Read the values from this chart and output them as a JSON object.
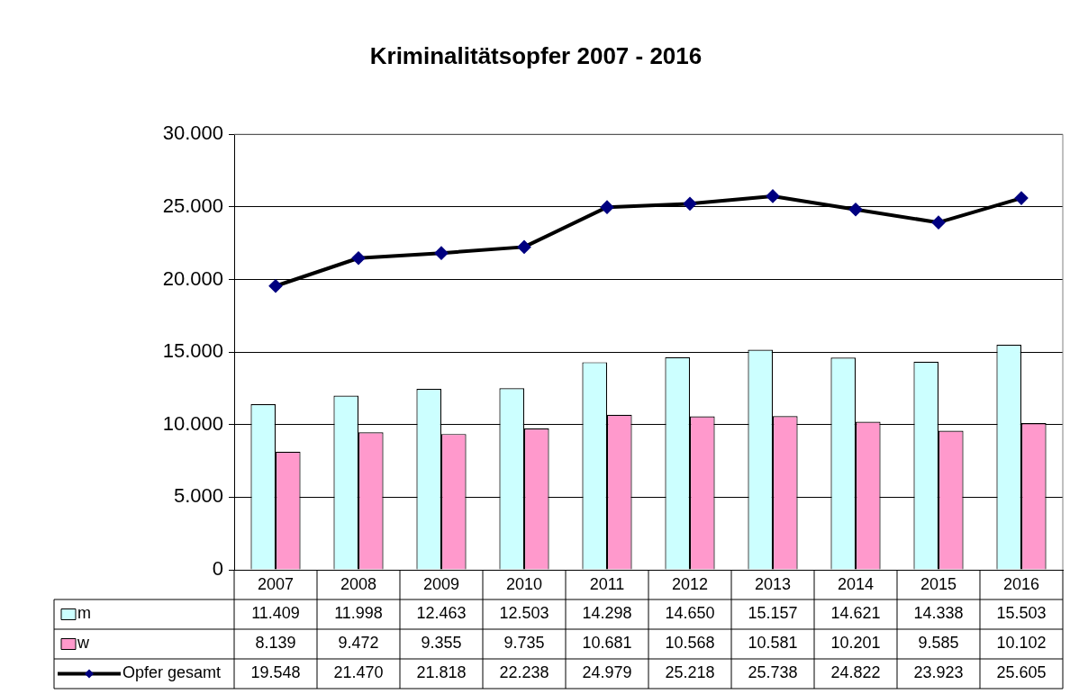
{
  "chart_data": {
    "type": "bar",
    "title": "Kriminalitätsopfer 2007 - 2016",
    "categories": [
      "2007",
      "2008",
      "2009",
      "2010",
      "2011",
      "2012",
      "2013",
      "2014",
      "2015",
      "2016"
    ],
    "series": [
      {
        "name": "m",
        "color": "#ccffff",
        "values": [
          11409,
          11998,
          12463,
          12503,
          14298,
          14650,
          15157,
          14621,
          14338,
          15503
        ],
        "value_labels": [
          "11.409",
          "11.998",
          "12.463",
          "12.503",
          "14.298",
          "14.650",
          "15.157",
          "14.621",
          "14.338",
          "15.503"
        ]
      },
      {
        "name": "w",
        "color": "#ff99cc",
        "values": [
          8139,
          9472,
          9355,
          9735,
          10681,
          10568,
          10581,
          10201,
          9585,
          10102
        ],
        "value_labels": [
          "8.139",
          "9.472",
          "9.355",
          "9.735",
          "10.681",
          "10.568",
          "10.581",
          "10.201",
          "9.585",
          "10.102"
        ]
      },
      {
        "name": "Opfer gesamt",
        "type": "line",
        "color": "#000000",
        "marker": "diamond",
        "values": [
          19548,
          21470,
          21818,
          22238,
          24979,
          25218,
          25738,
          24822,
          23923,
          25605
        ],
        "value_labels": [
          "19.548",
          "21.470",
          "21.818",
          "22.238",
          "24.979",
          "25.218",
          "25.738",
          "24.822",
          "23.923",
          "25.605"
        ]
      }
    ],
    "ylim": [
      0,
      30000
    ],
    "yticks": [
      {
        "value": 0,
        "label": "0"
      },
      {
        "value": 5000,
        "label": "5.000"
      },
      {
        "value": 10000,
        "label": "10.000"
      },
      {
        "value": 15000,
        "label": "15.000"
      },
      {
        "value": 20000,
        "label": "20.000"
      },
      {
        "value": 25000,
        "label": "25.000"
      },
      {
        "value": 30000,
        "label": "30.000"
      }
    ],
    "grid": "y",
    "legend": "bottom"
  }
}
